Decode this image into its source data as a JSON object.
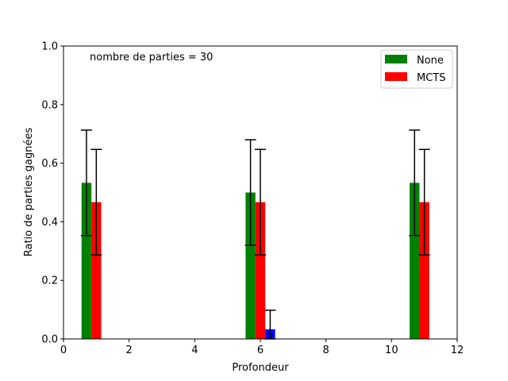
{
  "chart_data": {
    "type": "bar",
    "title": "",
    "xlabel": "Profondeur",
    "ylabel": "Ratio de parties gagnées",
    "xlim": [
      0,
      12
    ],
    "ylim": [
      0,
      1.0
    ],
    "xticks": [
      "0",
      "2",
      "4",
      "6",
      "8",
      "10",
      "12"
    ],
    "yticks": [
      "0.0",
      "0.2",
      "0.4",
      "0.6",
      "0.8",
      "1.0"
    ],
    "grid": false,
    "legend_position": "top-right",
    "annotation": "nombre de parties = 30",
    "series": [
      {
        "name": "None",
        "color": "#008000",
        "x": [
          0.7,
          5.7,
          10.7
        ],
        "values": [
          0.533,
          0.5,
          0.533
        ],
        "error": [
          0.18,
          0.18,
          0.18
        ]
      },
      {
        "name": "MCTS",
        "color": "#ff0000",
        "x": [
          1.0,
          6.0,
          11.0
        ],
        "values": [
          0.467,
          0.467,
          0.467
        ],
        "error": [
          0.18,
          0.18,
          0.18
        ]
      },
      {
        "name": "",
        "color": "#0000ff",
        "x": [
          1.3,
          6.3,
          11.3
        ],
        "values": [
          0.0,
          0.033,
          0.0
        ],
        "error": [
          0.0,
          0.065,
          0.0
        ]
      }
    ],
    "bar_width": 0.3
  }
}
